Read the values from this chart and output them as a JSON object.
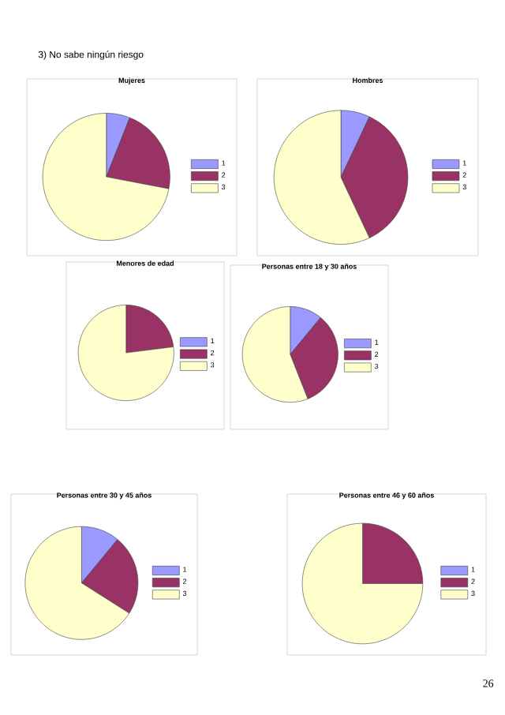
{
  "chart_data": [
    {
      "type": "pie",
      "title": "Mujeres",
      "categories": [
        "1",
        "2",
        "3"
      ],
      "values": [
        6,
        22,
        72
      ],
      "colors": [
        "#9999ff",
        "#993366",
        "#ffffcc"
      ],
      "legend": "right",
      "annotations": [
        "3) No sabe ningún riesgo"
      ]
    },
    {
      "type": "pie",
      "title": "Hombres",
      "categories": [
        "1",
        "2",
        "3"
      ],
      "values": [
        7,
        36,
        57
      ],
      "colors": [
        "#9999ff",
        "#993366",
        "#ffffcc"
      ],
      "legend": "right"
    },
    {
      "type": "pie",
      "title": "Menores de edad",
      "categories": [
        "1",
        "2",
        "3"
      ],
      "values": [
        0,
        23,
        77
      ],
      "colors": [
        "#9999ff",
        "#993366",
        "#ffffcc"
      ],
      "legend": "right"
    },
    {
      "type": "pie",
      "title": "Personas entre 18 y 30 años",
      "categories": [
        "1",
        "2",
        "3"
      ],
      "values": [
        11,
        33,
        56
      ],
      "colors": [
        "#9999ff",
        "#993366",
        "#ffffcc"
      ],
      "legend": "right"
    },
    {
      "type": "pie",
      "title": "Personas entre 30 y 45 años",
      "categories": [
        "1",
        "2",
        "3"
      ],
      "values": [
        11,
        23,
        66
      ],
      "colors": [
        "#9999ff",
        "#993366",
        "#ffffcc"
      ],
      "legend": "right"
    },
    {
      "type": "pie",
      "title": "Personas entre 46 y 60 años",
      "categories": [
        "1",
        "2",
        "3"
      ],
      "values": [
        0,
        25,
        75
      ],
      "colors": [
        "#9999ff",
        "#993366",
        "#ffffcc"
      ],
      "legend": "right",
      "annotations": [
        "26"
      ]
    }
  ]
}
